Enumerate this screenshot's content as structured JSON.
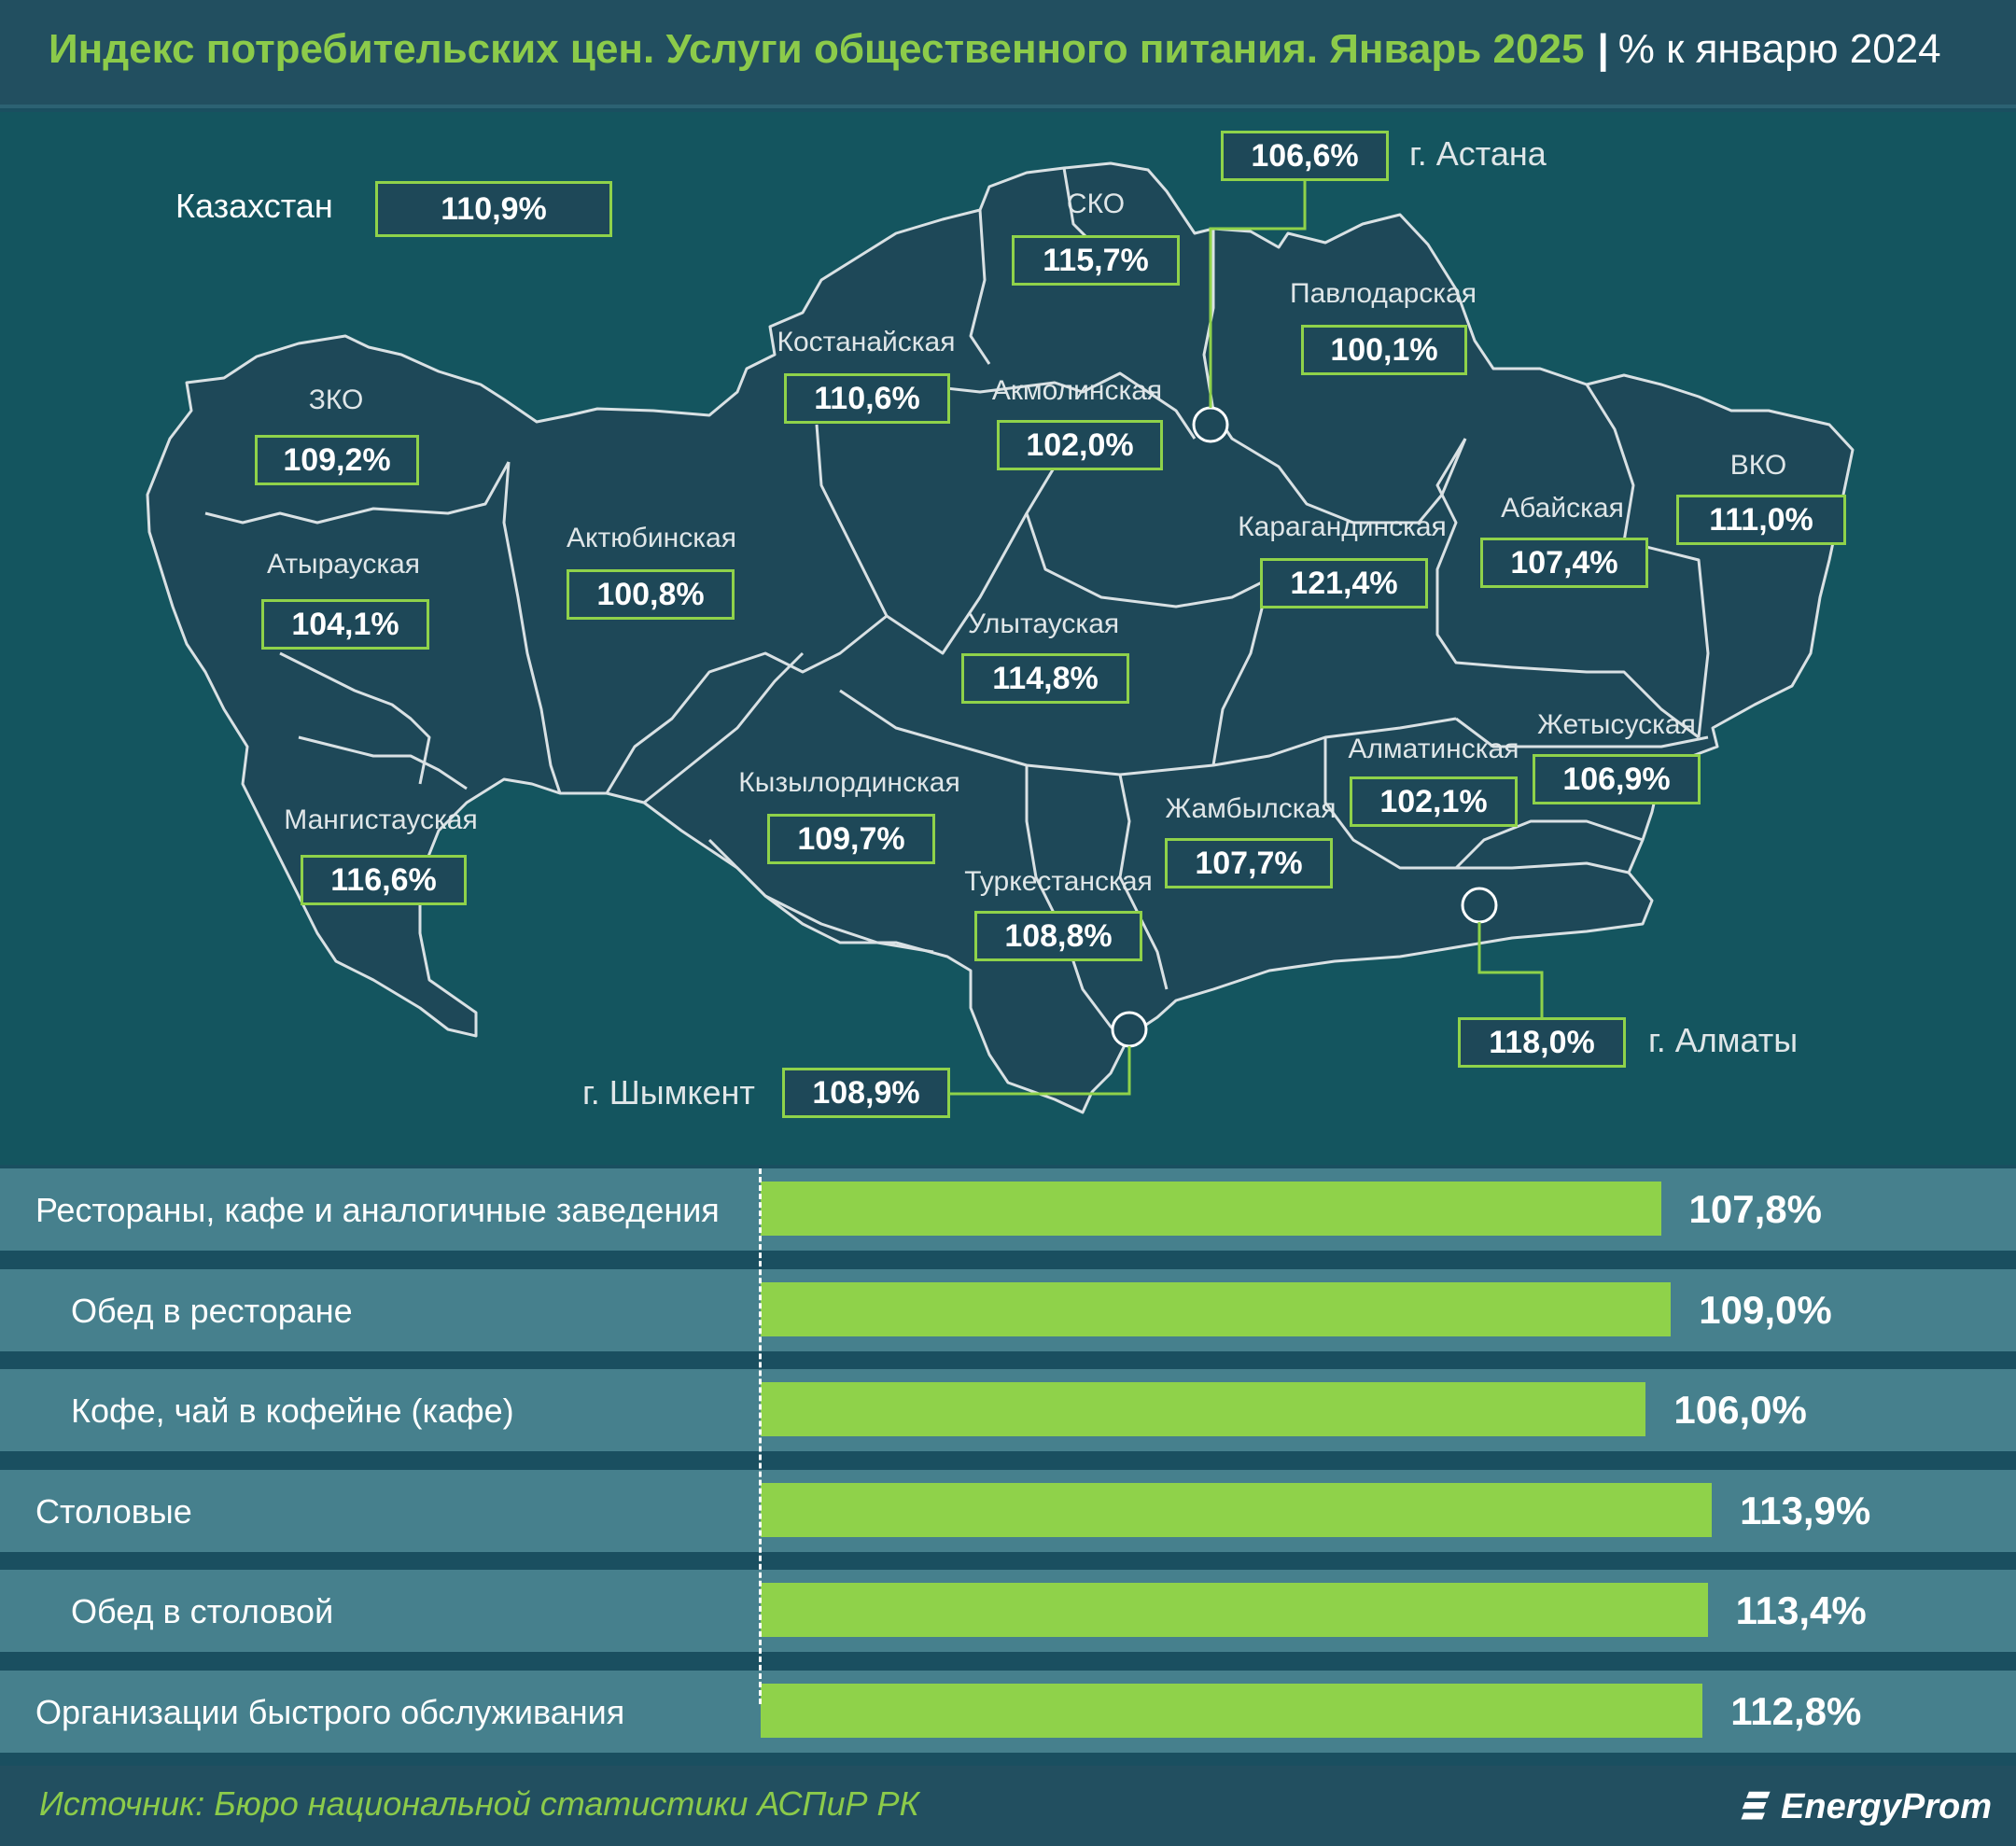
{
  "title": {
    "main": "Индекс потребительских цен. Услуги общественного питания. Январь 2025",
    "separator": "|",
    "unit": "% к январю 2024"
  },
  "kazakhstan": {
    "label": "Казахстан",
    "value": "110,9%"
  },
  "regions": [
    {
      "name": "ЗКО",
      "value": "109,2%"
    },
    {
      "name": "Атырауская",
      "value": "104,1%"
    },
    {
      "name": "Мангистауская",
      "value": "116,6%"
    },
    {
      "name": "Актюбинская",
      "value": "100,8%"
    },
    {
      "name": "Костанайская",
      "value": "110,6%"
    },
    {
      "name": "СКО",
      "value": "115,7%"
    },
    {
      "name": "Акмолинская",
      "value": "102,0%"
    },
    {
      "name": "Павлодарская",
      "value": "100,1%"
    },
    {
      "name": "Карагандинская",
      "value": "121,4%"
    },
    {
      "name": "Улытауская",
      "value": "114,8%"
    },
    {
      "name": "Кызылординская",
      "value": "109,7%"
    },
    {
      "name": "Туркестанская",
      "value": "108,8%"
    },
    {
      "name": "Жамбылская",
      "value": "107,7%"
    },
    {
      "name": "Алматинская",
      "value": "102,1%"
    },
    {
      "name": "Жетысуская",
      "value": "106,9%"
    },
    {
      "name": "Абайская",
      "value": "107,4%"
    },
    {
      "name": "ВКО",
      "value": "111,0%"
    }
  ],
  "cities": [
    {
      "name": "г. Астана",
      "value": "106,6%"
    },
    {
      "name": "г. Алматы",
      "value": "118,0%"
    },
    {
      "name": "г. Шымкент",
      "value": "108,9%"
    }
  ],
  "chart_data": {
    "type": "bar",
    "orientation": "horizontal",
    "categories": [
      "Рестораны, кафе и аналогичные заведения",
      "Обед в ресторане",
      "Кофе, чай в кофейне (кафе)",
      "Столовые",
      "Обед в столовой",
      "Организации быстрого обслуживания"
    ],
    "indent": [
      false,
      true,
      true,
      false,
      true,
      false
    ],
    "values": [
      107.8,
      109.0,
      106.0,
      113.9,
      113.4,
      112.8
    ],
    "value_labels": [
      "107,8%",
      "109,0%",
      "106,0%",
      "113,9%",
      "113,4%",
      "112,8%"
    ],
    "bar_color": "#8fd24a"
  },
  "source": "Источник: Бюро национальной статистики АСПиР РК",
  "logo": {
    "text": "EnergyProm",
    "icon": "energyprom-logo-icon"
  },
  "colors": {
    "accent_green": "#8ccb4a",
    "background": "#1a4f60",
    "map_fill": "#1e4858",
    "row_band": "#46808d"
  }
}
